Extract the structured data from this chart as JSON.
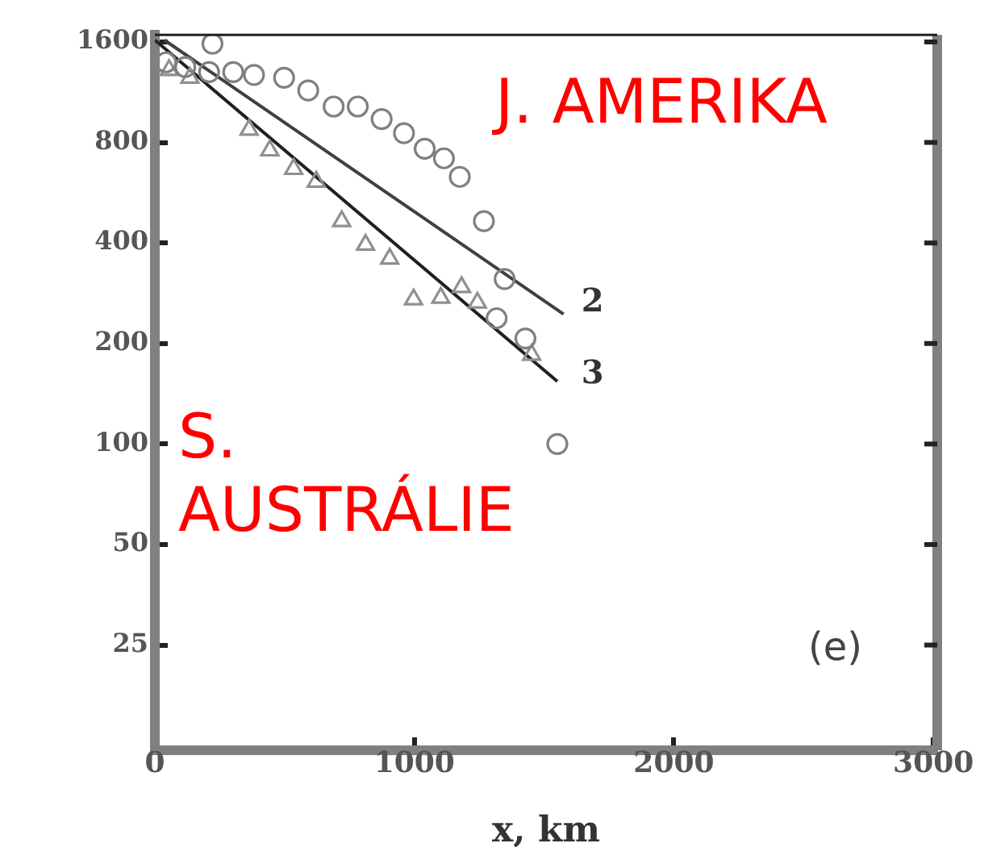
{
  "chart_data": {
    "type": "scatter",
    "xlabel": "x, km",
    "log": "y",
    "xlim": [
      0,
      3015
    ],
    "ylim": [
      12.1,
      1680
    ],
    "xticks": [
      0,
      1000,
      2000,
      3000
    ],
    "yticks": [
      25,
      50,
      100,
      200,
      400,
      800,
      1600
    ],
    "grid": false,
    "legend": false,
    "series": [
      {
        "marker": "circle",
        "color": "#808080",
        "x": [
          222,
          43,
          117,
          209,
          302,
          382,
          498,
          591,
          689,
          782,
          874,
          960,
          1040,
          1114,
          1175,
          1268,
          1348,
          1317,
          1428,
          1551
        ],
        "values": [
          1580,
          1390,
          1345,
          1300,
          1300,
          1275,
          1250,
          1145,
          1025,
          1025,
          940,
          853,
          766,
          717,
          631,
          465,
          312,
          238,
          207,
          100
        ]
      },
      {
        "marker": "triangle",
        "color": "#909090",
        "x": [
          55,
          135,
          363,
          443,
          535,
          622,
          720,
          812,
          905,
          997,
          1102,
          1182,
          1243,
          1452
        ],
        "values": [
          1318,
          1250,
          873,
          757,
          666,
          610,
          465,
          395,
          359,
          271,
          274,
          295,
          265,
          185
        ]
      },
      {
        "type": "line",
        "marker": "none",
        "line_style": "solid",
        "color": "#404040",
        "x": [
          37,
          1575
        ],
        "values": [
          1620,
          245
        ]
      },
      {
        "type": "line",
        "marker": "none",
        "line_style": "solid",
        "color": "#202020",
        "x": [
          0,
          1551
        ],
        "values": [
          1620,
          154
        ]
      }
    ],
    "annotations": [
      "J. AMERIKA",
      "S. AUSTRÁLIE",
      "(e)",
      "2",
      "3"
    ]
  }
}
